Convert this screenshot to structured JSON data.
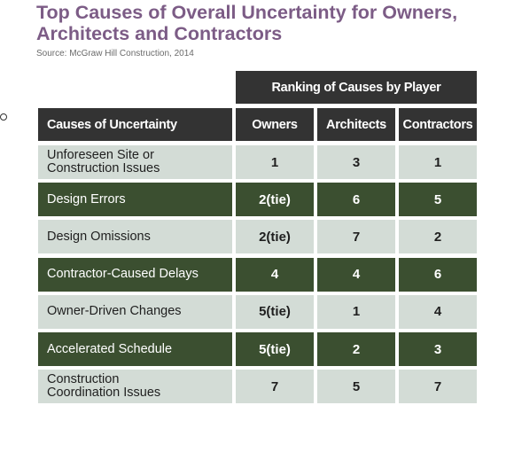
{
  "chart_data": {
    "type": "table",
    "title": "Top Causes of Overall Uncertainty for Owners, Architects and Contractors",
    "source": "Source: McGraw Hill Construction, 2014",
    "group_header": "Ranking of Causes by Player",
    "columns": [
      "Causes of Uncertainty",
      "Owners",
      "Architects",
      "Contractors"
    ],
    "rows": [
      {
        "cause": "Unforeseen Site or Construction Issues",
        "owners": "1",
        "architects": "3",
        "contractors": "1"
      },
      {
        "cause": "Design Errors",
        "owners": "2(tie)",
        "architects": "6",
        "contractors": "5"
      },
      {
        "cause": "Design Omissions",
        "owners": "2(tie)",
        "architects": "7",
        "contractors": "2"
      },
      {
        "cause": "Contractor-Caused Delays",
        "owners": "4",
        "architects": "4",
        "contractors": "6"
      },
      {
        "cause": "Owner-Driven Changes",
        "owners": "5(tie)",
        "architects": "1",
        "contractors": "4"
      },
      {
        "cause": "Accelerated Schedule",
        "owners": "5(tie)",
        "architects": "2",
        "contractors": "3"
      },
      {
        "cause": "Construction Coordination Issues",
        "owners": "7",
        "architects": "5",
        "contractors": "7"
      }
    ],
    "colors": {
      "title": "#7c5c86",
      "header": "#333333",
      "row_light": "#d3dcd6",
      "row_dark": "#3b4f30"
    }
  }
}
